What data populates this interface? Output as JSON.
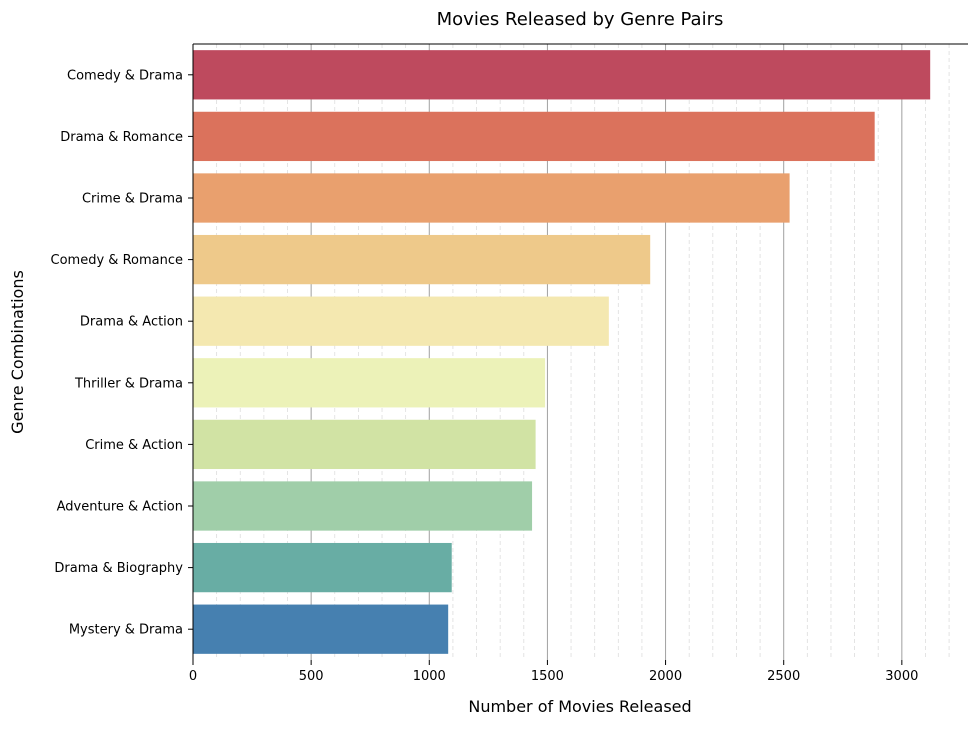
{
  "chart_data": {
    "type": "bar",
    "orientation": "horizontal",
    "title": "Movies Released by Genre Pairs",
    "xlabel": "Number of Movies Released",
    "ylabel": "Genre Combinations",
    "xlim": [
      0,
      3280
    ],
    "xticks": [
      0,
      500,
      1000,
      1500,
      2000,
      2500,
      3000
    ],
    "xtick_labels": [
      "0",
      "500",
      "1000",
      "1500",
      "2000",
      "2500",
      "3000"
    ],
    "minor_xtick_step": 100,
    "grid": "vertical",
    "categories": [
      "Comedy & Drama",
      "Drama & Romance",
      "Crime & Drama",
      "Comedy & Romance",
      "Drama & Action",
      "Thriller & Drama",
      "Crime & Action",
      "Adventure & Action",
      "Drama & Biography",
      "Mystery & Drama"
    ],
    "values": [
      3120,
      2885,
      2525,
      1935,
      1760,
      1490,
      1450,
      1435,
      1095,
      1080
    ],
    "colors": [
      "#be4a5e",
      "#db725c",
      "#e9a06e",
      "#eec98a",
      "#f4e8b0",
      "#ecf2b8",
      "#d1e3a4",
      "#a0cea9",
      "#68ada4",
      "#4680b0"
    ]
  }
}
